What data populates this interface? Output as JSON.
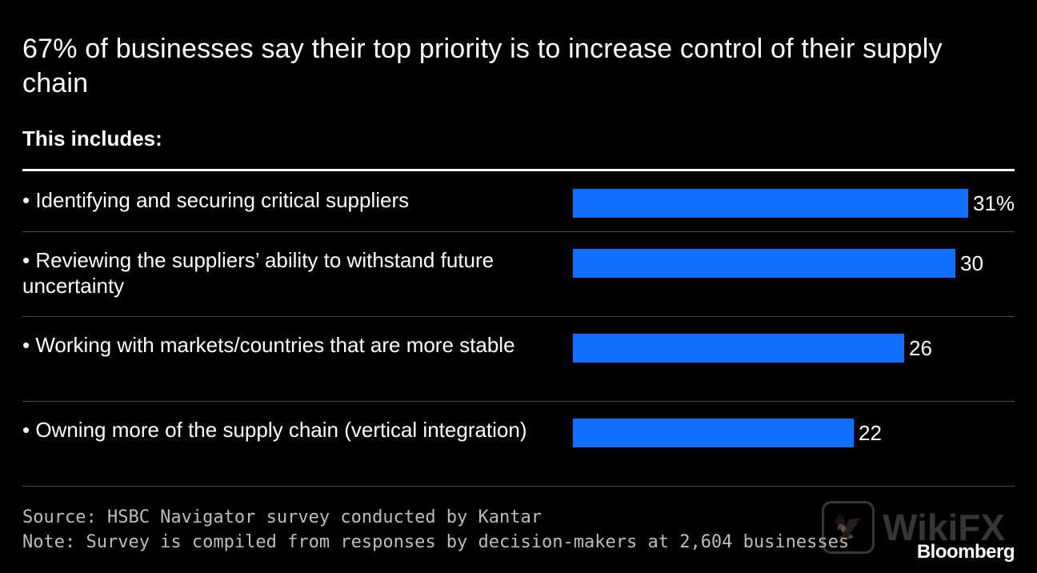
{
  "title": "67% of businesses say their top priority is to increase control of their supply chain",
  "subtitle": "This includes:",
  "chart_data": {
    "type": "bar",
    "orientation": "horizontal",
    "title": "67% of businesses say their top priority is to increase control of their supply chain",
    "subtitle": "This includes:",
    "categories": [
      "• Identifying and securing critical suppliers",
      "• Reviewing the suppliers’ ability to withstand future uncertainty",
      "• Working with markets/countries that are more stable",
      "• Owning more of the supply chain (vertical integration)"
    ],
    "values": [
      31,
      30,
      26,
      22
    ],
    "value_labels": [
      "31%",
      "30",
      "26",
      "22"
    ],
    "unit": "%",
    "xlim": [
      0,
      31
    ],
    "bar_color": "#0f6fff"
  },
  "source": "Source: HSBC Navigator survey conducted by Kantar",
  "note": "Note: Survey is compiled from responses by decision-makers at 2,604 businesses",
  "brand": "Bloomberg",
  "watermark": {
    "text": "WikiFX",
    "icon": "eagle-icon"
  },
  "colors": {
    "background": "#000000",
    "text": "#ffffff",
    "bar": "#0f6fff",
    "divider": "#4a4a4a",
    "footer_text": "#bdbdbd"
  }
}
